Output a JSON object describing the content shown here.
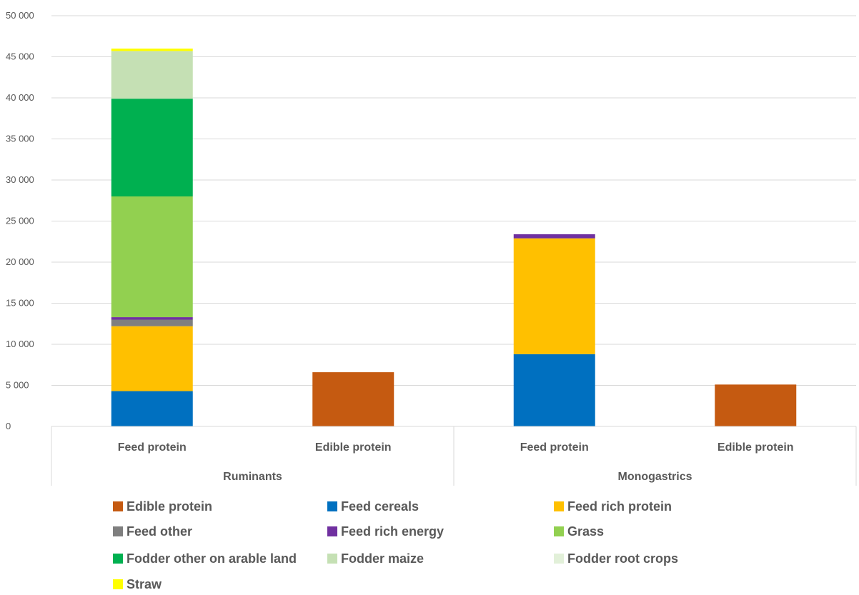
{
  "chart_data": {
    "type": "bar",
    "stacked": true,
    "grid": true,
    "legend_position": "bottom",
    "ylim": [
      0,
      50000
    ],
    "yticks": [
      0,
      5000,
      10000,
      15000,
      20000,
      25000,
      30000,
      35000,
      40000,
      45000,
      50000
    ],
    "ytick_labels": [
      "0",
      "5 000",
      "10 000",
      "15 000",
      "20 000",
      "25 000",
      "30 000",
      "35 000",
      "40 000",
      "45 000",
      "50 000"
    ],
    "groups": [
      {
        "name": "Ruminants",
        "categories": [
          "Feed protein",
          "Edible protein"
        ]
      },
      {
        "name": "Monogastrics",
        "categories": [
          "Feed protein",
          "Edible protein"
        ]
      }
    ],
    "x_labels": [
      "Feed protein",
      "Edible protein",
      "Feed protein",
      "Edible protein"
    ],
    "series": [
      {
        "name": "Edible protein",
        "color": "#C55A11",
        "values": [
          0,
          6600,
          0,
          5100
        ]
      },
      {
        "name": "Feed cereals",
        "color": "#0070C0",
        "values": [
          4300,
          0,
          8800,
          0
        ]
      },
      {
        "name": "Feed rich protein",
        "color": "#FFC000",
        "values": [
          7900,
          0,
          14100,
          0
        ]
      },
      {
        "name": "Feed other",
        "color": "#7F7F7F",
        "values": [
          800,
          0,
          0,
          0
        ]
      },
      {
        "name": "Feed rich energy",
        "color": "#7030A0",
        "values": [
          300,
          0,
          500,
          0
        ]
      },
      {
        "name": "Grass",
        "color": "#92D050",
        "values": [
          14700,
          0,
          0,
          0
        ]
      },
      {
        "name": "Fodder other on arable land",
        "color": "#00B050",
        "values": [
          11900,
          0,
          0,
          0
        ]
      },
      {
        "name": "Fodder maize",
        "color": "#C5E0B4",
        "values": [
          5800,
          0,
          0,
          0
        ]
      },
      {
        "name": "Fodder root crops",
        "color": "#E2F0D9",
        "values": [
          0,
          0,
          0,
          0
        ]
      },
      {
        "name": "Straw",
        "color": "#FFFF00",
        "values": [
          300,
          0,
          0,
          0
        ]
      }
    ]
  }
}
